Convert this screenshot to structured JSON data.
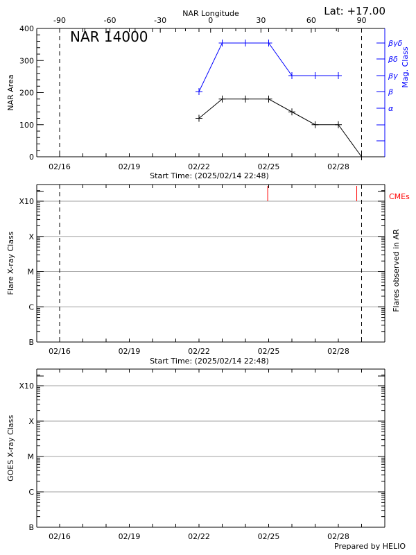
{
  "header": {
    "nar_title": "NAR 14000",
    "latitude": "Lat: +17.00",
    "longitude_axis_label": "NAR Longitude",
    "longitude_ticks": [
      "-90",
      "-60",
      "-30",
      "0",
      "30",
      "60",
      "90"
    ]
  },
  "footer": {
    "credit": "Prepared by HELIO"
  },
  "colors": {
    "area": "#000000",
    "mag_class": "#0000ff",
    "cme": "#ff0000",
    "grid": "#a0a0a0"
  },
  "chart_data": [
    {
      "type": "line",
      "title": "NAR 14000",
      "xlabel": "Start Time: (2025/02/14 22:48)",
      "ylabel": "NAR Area",
      "y2label": "Mag. Class",
      "x_tick_labels": [
        "02/16",
        "02/19",
        "02/22",
        "02/25",
        "02/28"
      ],
      "ylim": [
        0,
        400
      ],
      "y_ticks": [
        0,
        100,
        200,
        300,
        400
      ],
      "x": [
        "02/22",
        "02/23",
        "02/24",
        "02/25",
        "02/26",
        "02/27",
        "02/28",
        "03/01"
      ],
      "series": [
        {
          "name": "NAR Area",
          "color": "#000000",
          "values": [
            120,
            180,
            180,
            180,
            140,
            100,
            100,
            0
          ]
        },
        {
          "name": "Mag. Class",
          "color": "#0000ff",
          "values": [
            "β",
            "βγδ",
            "βγδ",
            "βγδ",
            "βγ",
            "βγ",
            "βγ"
          ]
        }
      ],
      "mag_class_ticks": [
        "βγδ",
        "βδ",
        "βγ",
        "β",
        "α"
      ],
      "vertical_dashed_lines": [
        "02/16",
        "03/01"
      ],
      "secondary_x_axis": {
        "label": "NAR Longitude",
        "ticks": [
          -90,
          -60,
          -30,
          0,
          30,
          60,
          90
        ]
      }
    },
    {
      "type": "scatter",
      "xlabel": "Start Time: (2025/02/14 22:48)",
      "ylabel": "Flare X-ray Class",
      "y2label": "Flares observed in AR",
      "y_tick_labels": [
        "B",
        "C",
        "M",
        "X",
        "X10"
      ],
      "x_tick_labels": [
        "02/16",
        "02/19",
        "02/22",
        "02/25",
        "02/28"
      ],
      "cme_label": "CMEs",
      "cme_times": [
        "02/24 23:00",
        "02/28 19:00"
      ],
      "flares": [],
      "vertical_dashed_lines": [
        "02/16",
        "03/01"
      ],
      "grid": true
    },
    {
      "type": "line",
      "ylabel": "GOES X-ray Class",
      "y_tick_labels": [
        "B",
        "C",
        "M",
        "X",
        "X10"
      ],
      "x_tick_labels": [
        "02/16",
        "02/19",
        "02/22",
        "02/25",
        "02/28"
      ],
      "series": [],
      "grid": true
    }
  ]
}
